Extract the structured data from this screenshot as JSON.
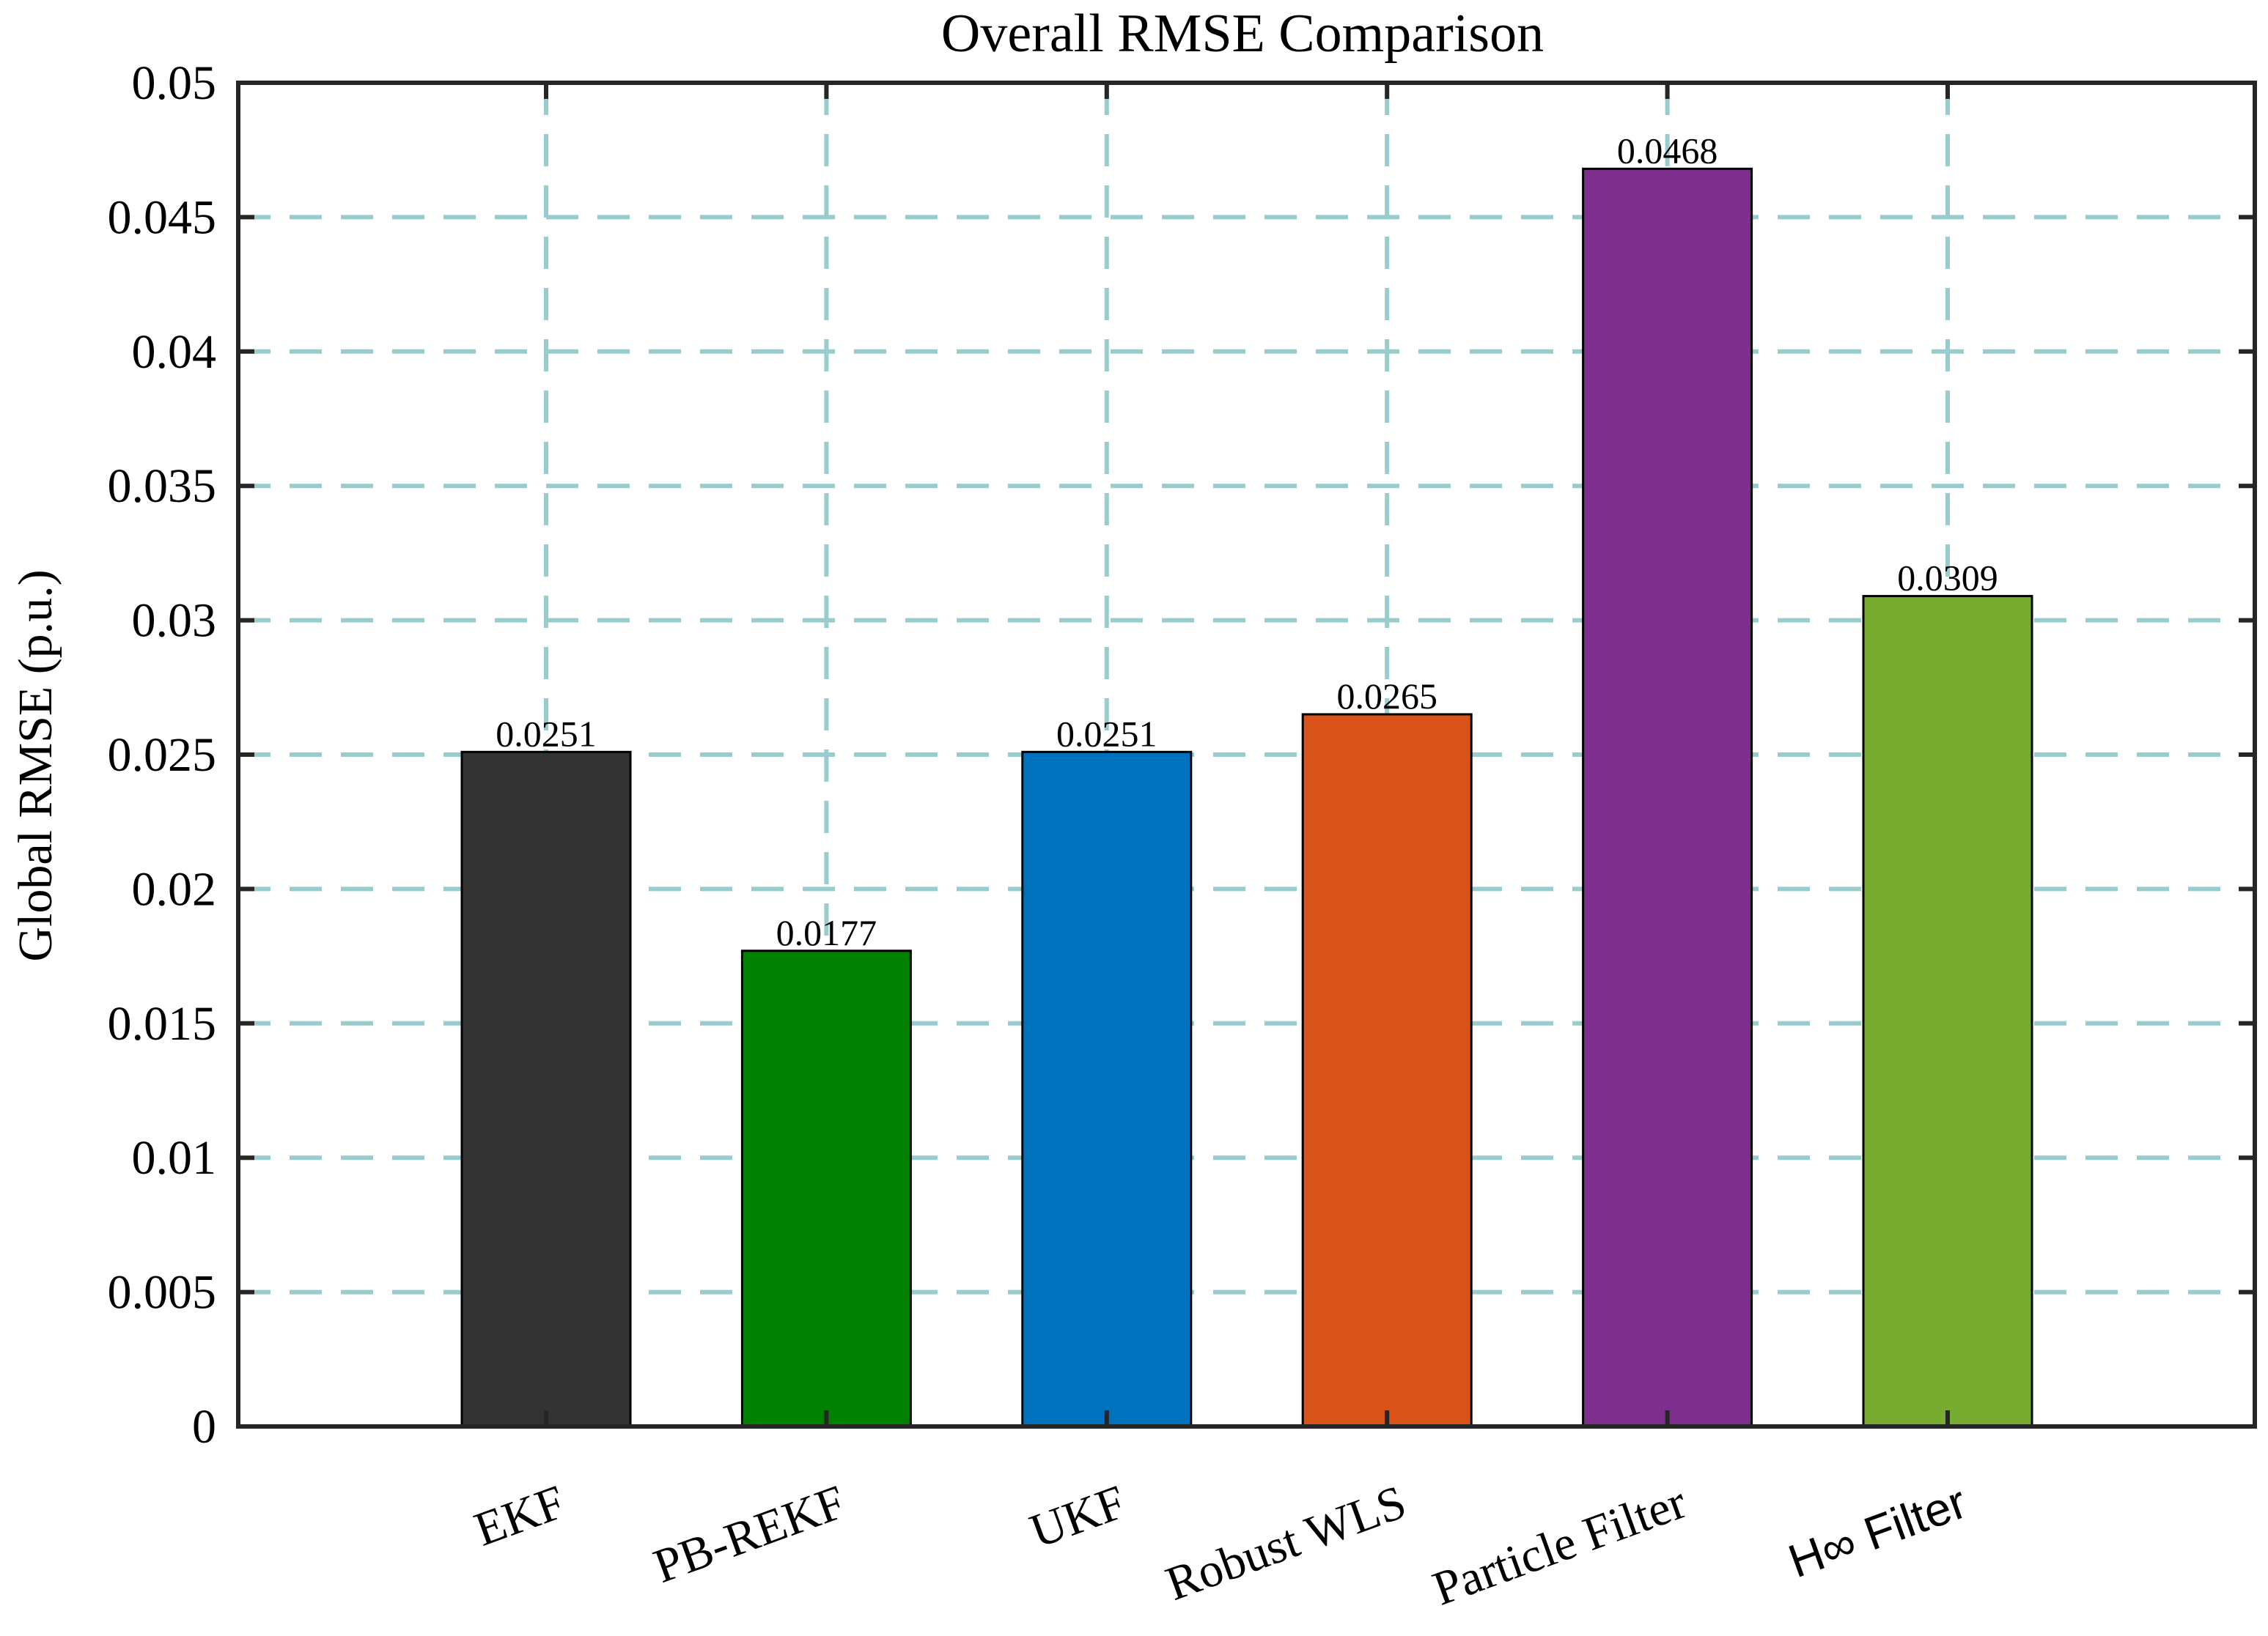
{
  "chart_data": {
    "type": "bar",
    "title": "Overall RMSE Comparison",
    "xlabel": "",
    "ylabel": "Global RMSE (p.u.)",
    "ylim": [
      0,
      0.05
    ],
    "yticks": [
      "0",
      "0.005",
      "0.01",
      "0.015",
      "0.02",
      "0.025",
      "0.03",
      "0.035",
      "0.04",
      "0.045",
      "0.05"
    ],
    "categories": [
      "EKF",
      "PB-REKF",
      "UKF",
      "Robust WLS",
      "Particle Filter",
      "H∞ Filter"
    ],
    "values": [
      0.0251,
      0.0177,
      0.0251,
      0.0265,
      0.0468,
      0.0309
    ],
    "data_labels": [
      "0.0251",
      "0.0177",
      "0.0251",
      "0.0265",
      "0.0468",
      "0.0309"
    ],
    "colors": [
      "#333333",
      "#008000",
      "#0072BD",
      "#D95319",
      "#7E2F8E",
      "#77AC30"
    ],
    "grid": true,
    "grid_color": "#99CCCC",
    "legend": false
  }
}
